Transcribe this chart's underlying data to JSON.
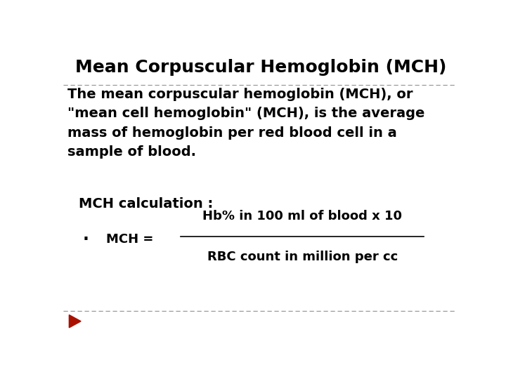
{
  "title": "Mean Corpuscular Hemoglobin (MCH)",
  "body_text": "The mean corpuscular hemoglobin (MCH), or\n\"mean cell hemoglobin\" (MCH), is the average\nmass of hemoglobin per red blood cell in a\nsample of blood.",
  "calc_label": "MCH calculation :",
  "bullet": "·",
  "bullet_label": "MCH =",
  "numerator": "Hb% in 100 ml of blood x 10",
  "denominator": "RBC count in million per cc",
  "background_color": "#ffffff",
  "text_color": "#000000",
  "title_fontsize": 18,
  "body_fontsize": 14,
  "calc_fontsize": 14,
  "formula_fontsize": 13,
  "dashed_line_color": "#999999",
  "arrow_color": "#aa1100"
}
